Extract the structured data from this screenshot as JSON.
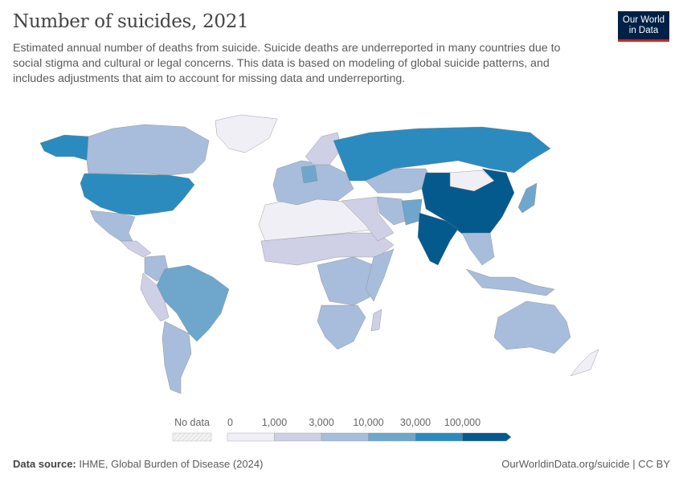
{
  "header": {
    "title": "Number of suicides, 2021",
    "subtitle": "Estimated annual number of deaths from suicide. Suicide deaths are underreported in many countries due to social stigma and cultural or legal concerns. This data is based on modeling of global suicide patterns, and includes adjustments that aim to account for missing data and underreporting.",
    "logo_line1": "Our World",
    "logo_line2": "in Data"
  },
  "legend": {
    "no_data": "No data",
    "ticks": [
      "0",
      "1,000",
      "3,000",
      "10,000",
      "30,000",
      "100,000"
    ],
    "colors": [
      "#f0eff6",
      "#cfd0e6",
      "#a8bddb",
      "#6fa6cc",
      "#2b8bbe",
      "#045a8d"
    ],
    "no_data_color": "#e8e8e8"
  },
  "regions": [
    {
      "name": "Alaska",
      "bin": 4
    },
    {
      "name": "Canada",
      "bin": 2
    },
    {
      "name": "USA",
      "bin": 4
    },
    {
      "name": "Mexico",
      "bin": 2
    },
    {
      "name": "Greenland",
      "bin": 0
    },
    {
      "name": "Central America",
      "bin": 1
    },
    {
      "name": "Colombia",
      "bin": 2
    },
    {
      "name": "Brazil",
      "bin": 3
    },
    {
      "name": "Argentina",
      "bin": 2
    },
    {
      "name": "Andes",
      "bin": 1
    },
    {
      "name": "North Africa",
      "bin": 0
    },
    {
      "name": "Sahel",
      "bin": 1
    },
    {
      "name": "Central Africa",
      "bin": 2
    },
    {
      "name": "East Africa",
      "bin": 2
    },
    {
      "name": "South Africa",
      "bin": 2
    },
    {
      "name": "Madagascar",
      "bin": 1
    },
    {
      "name": "Europe",
      "bin": 2
    },
    {
      "name": "Germany",
      "bin": 3
    },
    {
      "name": "Russia",
      "bin": 4
    },
    {
      "name": "Kazakhstan",
      "bin": 2
    },
    {
      "name": "Middle East",
      "bin": 1
    },
    {
      "name": "Iran",
      "bin": 2
    },
    {
      "name": "Pakistan",
      "bin": 3
    },
    {
      "name": "India",
      "bin": 5
    },
    {
      "name": "China",
      "bin": 5
    },
    {
      "name": "Mongolia",
      "bin": 0
    },
    {
      "name": "Japan",
      "bin": 3
    },
    {
      "name": "Southeast Asia",
      "bin": 2
    },
    {
      "name": "Indonesia",
      "bin": 2
    },
    {
      "name": "Australia",
      "bin": 2
    },
    {
      "name": "New Zealand",
      "bin": 0
    },
    {
      "name": "Scandinavia",
      "bin": 1
    }
  ],
  "footer": {
    "source_label": "Data source:",
    "source": "IHME, Global Burden of Disease (2024)",
    "link": "OurWorldinData.org/suicide | CC BY"
  }
}
